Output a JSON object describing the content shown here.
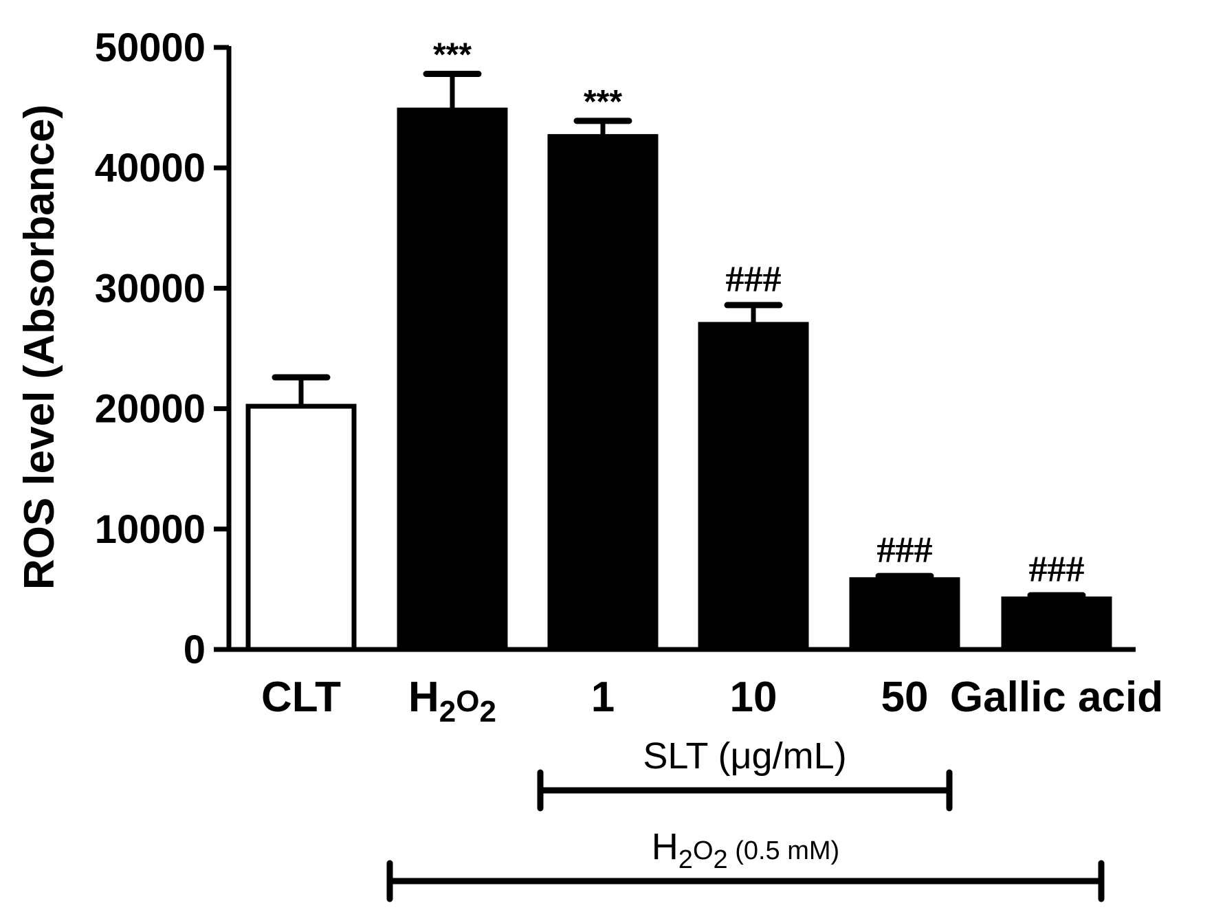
{
  "chart_data": {
    "type": "bar",
    "title": "",
    "xlabel": "",
    "ylabel": "ROS level (Absorbance)",
    "ylim": [
      0,
      50000
    ],
    "yticks": [
      "0",
      "10000",
      "20000",
      "30000",
      "40000",
      "50000"
    ],
    "categories": [
      {
        "base": "CLT"
      },
      {
        "base": "H",
        "sub1": "2",
        "mid": "O",
        "sub2": "2"
      },
      {
        "base": "1"
      },
      {
        "base": "10"
      },
      {
        "base": "50"
      },
      {
        "base": "Gallic acid"
      }
    ],
    "values": [
      20200,
      44800,
      42600,
      27000,
      5800,
      4200
    ],
    "errors": [
      2400,
      3000,
      1300,
      1600,
      300,
      300
    ],
    "fills": [
      "#ffffff",
      "#000000",
      "#000000",
      "#000000",
      "#000000",
      "#000000"
    ],
    "significance": [
      "",
      "***",
      "***",
      "###",
      "###",
      "###"
    ],
    "grid": false,
    "brackets": [
      {
        "label": {
          "base": "SLT (μg/mL)"
        },
        "from": 2,
        "to": 4
      },
      {
        "label": {
          "base": "H",
          "sub1": "2",
          "mid": "O",
          "sub2": "2",
          "tail": " (0.5 mM)"
        },
        "from": 1,
        "to": 5
      }
    ]
  }
}
